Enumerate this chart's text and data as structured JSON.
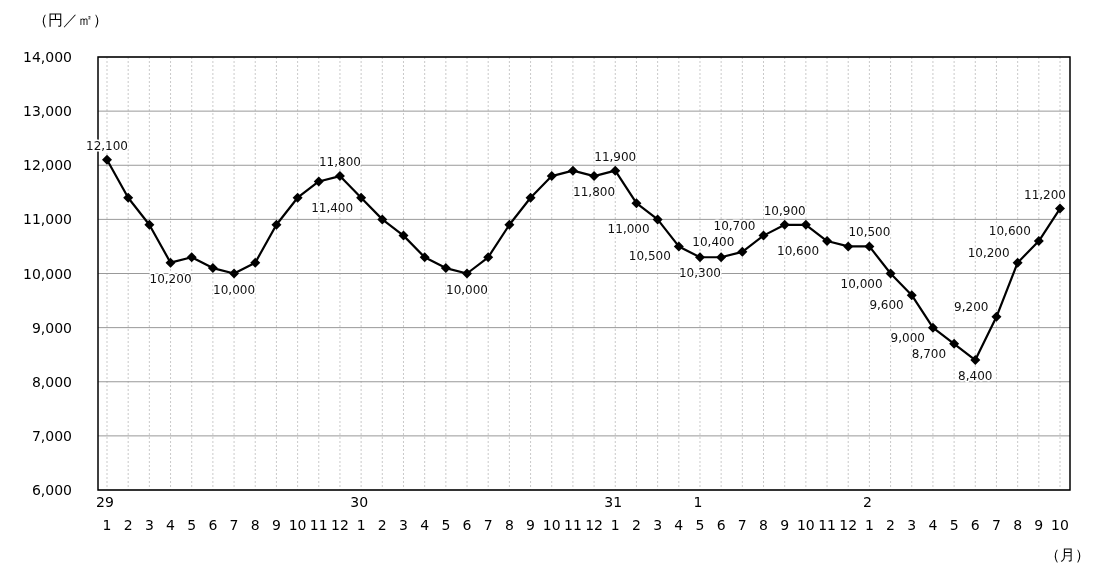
{
  "chart_data": {
    "type": "line",
    "ylabel": "（円／㎡）",
    "xlabel": "（月）",
    "categories": [
      "29\n1",
      "2",
      "3",
      "4",
      "5",
      "6",
      "7",
      "8",
      "9",
      "10",
      "11",
      "12",
      "30\n1",
      "2",
      "3",
      "4",
      "5",
      "6",
      "7",
      "8",
      "9",
      "10",
      "11",
      "12",
      "31\n1",
      "2",
      "3",
      "4",
      "1\n5",
      "6",
      "7",
      "8",
      "9",
      "10",
      "11",
      "12",
      "2\n1",
      "2",
      "3",
      "4",
      "5",
      "6",
      "7",
      "8",
      "9",
      "10"
    ],
    "series": [
      {
        "color": "#000000",
        "values": [
          12100,
          11400,
          10900,
          10200,
          10300,
          10100,
          10000,
          10200,
          10900,
          11400,
          11700,
          11800,
          11400,
          11000,
          10700,
          10300,
          10100,
          10000,
          10300,
          10900,
          11400,
          11800,
          11900,
          11800,
          11900,
          11300,
          11000,
          10500,
          10300,
          10300,
          10400,
          10700,
          10900,
          10900,
          10600,
          10500,
          10500,
          10000,
          9600,
          9000,
          8700,
          8400,
          9200,
          10200,
          10600,
          11200
        ],
        "value_labels": [
          "12,100",
          null,
          null,
          "10,200",
          null,
          null,
          "10,000",
          null,
          null,
          null,
          null,
          "11,800",
          "11,400",
          null,
          null,
          null,
          null,
          "10,000",
          null,
          null,
          null,
          null,
          null,
          "11,800",
          "11,900",
          null,
          "11,000",
          "10,500",
          "10,300",
          null,
          "10,400",
          "10,700",
          "10,900",
          null,
          "10,600",
          null,
          "10,500",
          "10,000",
          "9,600",
          "9,000",
          "8,700",
          "8,400",
          "9,200",
          "10,200",
          "10,600",
          "11,200"
        ]
      }
    ],
    "ylim": [
      6000,
      14000
    ],
    "yticks": [
      {
        "value": 6000,
        "label": "6,000"
      },
      {
        "value": 7000,
        "label": "7,000"
      },
      {
        "value": 8000,
        "label": "8,000"
      },
      {
        "value": 9000,
        "label": "9,000"
      },
      {
        "value": 10000,
        "label": "10,000"
      },
      {
        "value": 11000,
        "label": "11,000"
      },
      {
        "value": 12000,
        "label": "12,000"
      },
      {
        "value": 13000,
        "label": "13,000"
      },
      {
        "value": 14000,
        "label": "14,000"
      }
    ],
    "grid": true,
    "marker": "diamond",
    "line_style": "solid"
  }
}
